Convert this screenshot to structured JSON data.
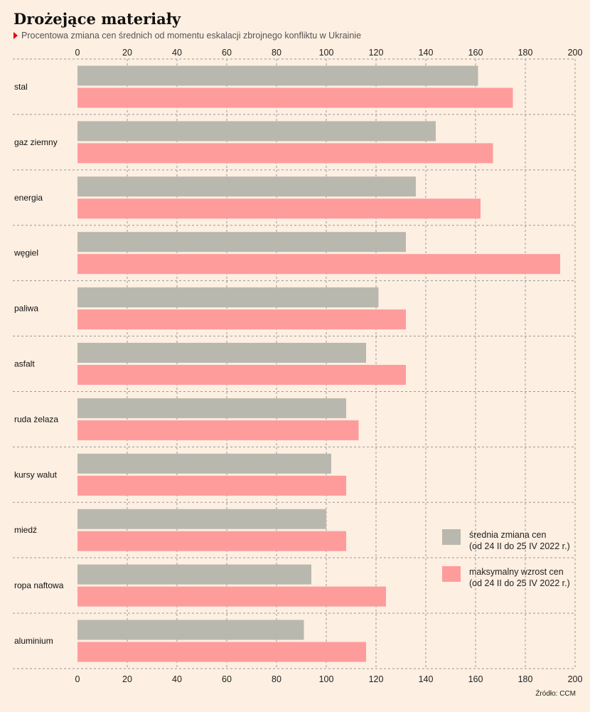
{
  "title": "Drożejące materiały",
  "subtitle": "Procentowa zmiana cen średnich od momentu eskalacji zbrojnego konfliktu w Ukrainie",
  "source": "Źródło: CCM",
  "colors": {
    "series_avg": "#b9b8ae",
    "series_max": "#fe9c9c",
    "grid": "#9a9a9a",
    "background": "#fdefe1"
  },
  "legend": [
    {
      "line1": "średnia zmiana cen",
      "line2": "(od 24 II do 25 IV 2022 r.)",
      "color": "#b9b8ae"
    },
    {
      "line1": "maksymalny wzrost cen",
      "line2": "(od 24 II do 25 IV 2022 r.)",
      "color": "#fe9c9c"
    }
  ],
  "chart_data": {
    "type": "bar",
    "orientation": "horizontal",
    "categories": [
      "stal",
      "gaz ziemny",
      "energia",
      "węgiel",
      "paliwa",
      "asfalt",
      "ruda żelaza",
      "kursy walut",
      "miedź",
      "ropa naftowa",
      "aluminium"
    ],
    "series": [
      {
        "name": "średnia zmiana cen (od 24 II do 25 IV 2022 r.)",
        "values": [
          161,
          144,
          136,
          132,
          121,
          116,
          108,
          102,
          100,
          94,
          91
        ]
      },
      {
        "name": "maksymalny wzrost cen (od 24 II do 25 IV 2022 r.)",
        "values": [
          175,
          167,
          162,
          194,
          132,
          132,
          113,
          108,
          108,
          124,
          116
        ]
      }
    ],
    "xlim": [
      0,
      200
    ],
    "xticks": [
      0,
      20,
      40,
      60,
      80,
      100,
      120,
      140,
      160,
      180,
      200
    ],
    "grid": true,
    "axis_labels_top_and_bottom": true,
    "legend_position": "bottom-right"
  }
}
